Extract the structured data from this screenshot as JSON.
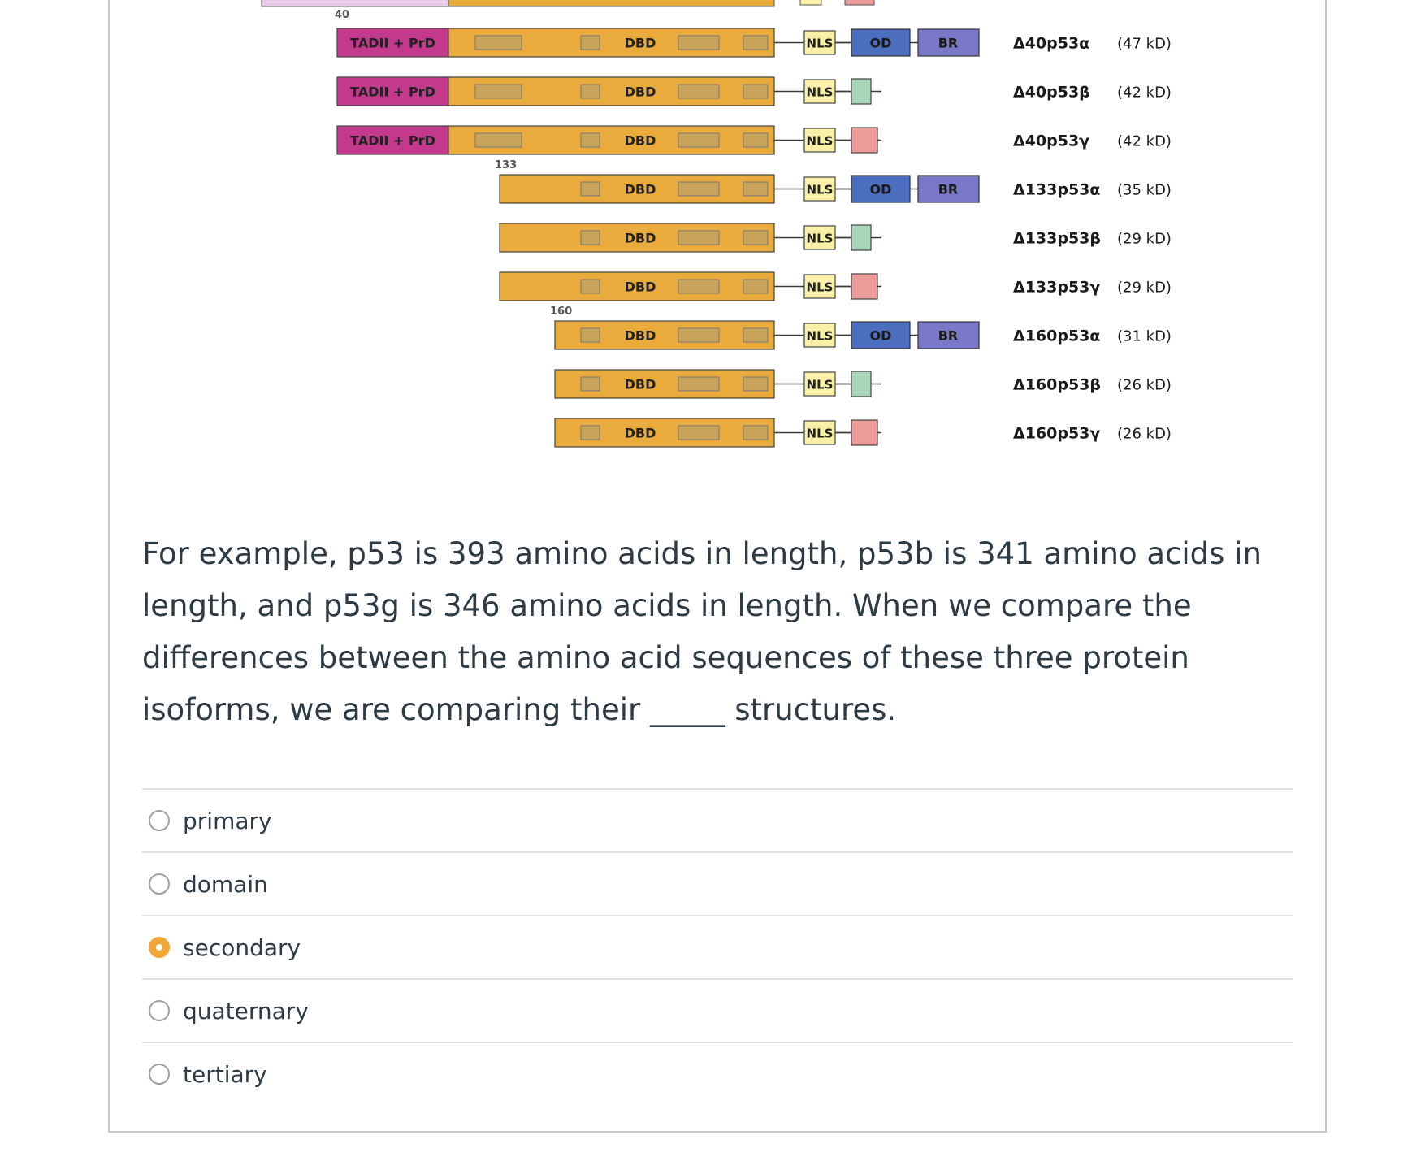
{
  "diagram": {
    "top_marker": "40",
    "markers": [
      "133",
      "160"
    ],
    "colors": {
      "tad": "#c33a8c",
      "dbd": "#e9ab3c",
      "dbd_block": "#c9a45c",
      "nls": "#fbf0a8",
      "od": "#4c6ebe",
      "br": "#7a78c8",
      "beta": "#a8d4b8",
      "gamma": "#ec9a9a",
      "tadI_partial": "#e6c9e8"
    },
    "labels": {
      "tad": "TADII + PrD",
      "dbd": "DBD",
      "nls": "NLS",
      "od": "OD",
      "br": "BR"
    },
    "isoforms": [
      {
        "name": "Δ40p53α",
        "mass": "(47 kD)",
        "start": 40,
        "tail": "alpha"
      },
      {
        "name": "Δ40p53β",
        "mass": "(42 kD)",
        "start": 40,
        "tail": "beta"
      },
      {
        "name": "Δ40p53γ",
        "mass": "(42 kD)",
        "start": 40,
        "tail": "gamma"
      },
      {
        "name": "Δ133p53α",
        "mass": "(35 kD)",
        "start": 133,
        "tail": "alpha"
      },
      {
        "name": "Δ133p53β",
        "mass": "(29 kD)",
        "start": 133,
        "tail": "beta"
      },
      {
        "name": "Δ133p53γ",
        "mass": "(29 kD)",
        "start": 133,
        "tail": "gamma"
      },
      {
        "name": "Δ160p53α",
        "mass": "(31 kD)",
        "start": 160,
        "tail": "alpha"
      },
      {
        "name": "Δ160p53β",
        "mass": "(26 kD)",
        "start": 160,
        "tail": "beta"
      },
      {
        "name": "Δ160p53γ",
        "mass": "(26 kD)",
        "start": 160,
        "tail": "gamma"
      }
    ]
  },
  "question": {
    "text": "For example, p53 is 393 amino acids in length, p53b is 341 amino acids in length, and p53g is 346 amino acids in length. When we compare the differences between the amino acid sequences of these three protein isoforms, we are comparing their _____ structures."
  },
  "options": [
    {
      "label": "primary",
      "selected": false
    },
    {
      "label": "domain",
      "selected": false
    },
    {
      "label": "secondary",
      "selected": true
    },
    {
      "label": "quaternary",
      "selected": false
    },
    {
      "label": "tertiary",
      "selected": false
    }
  ],
  "accent_color": "#f0a535"
}
